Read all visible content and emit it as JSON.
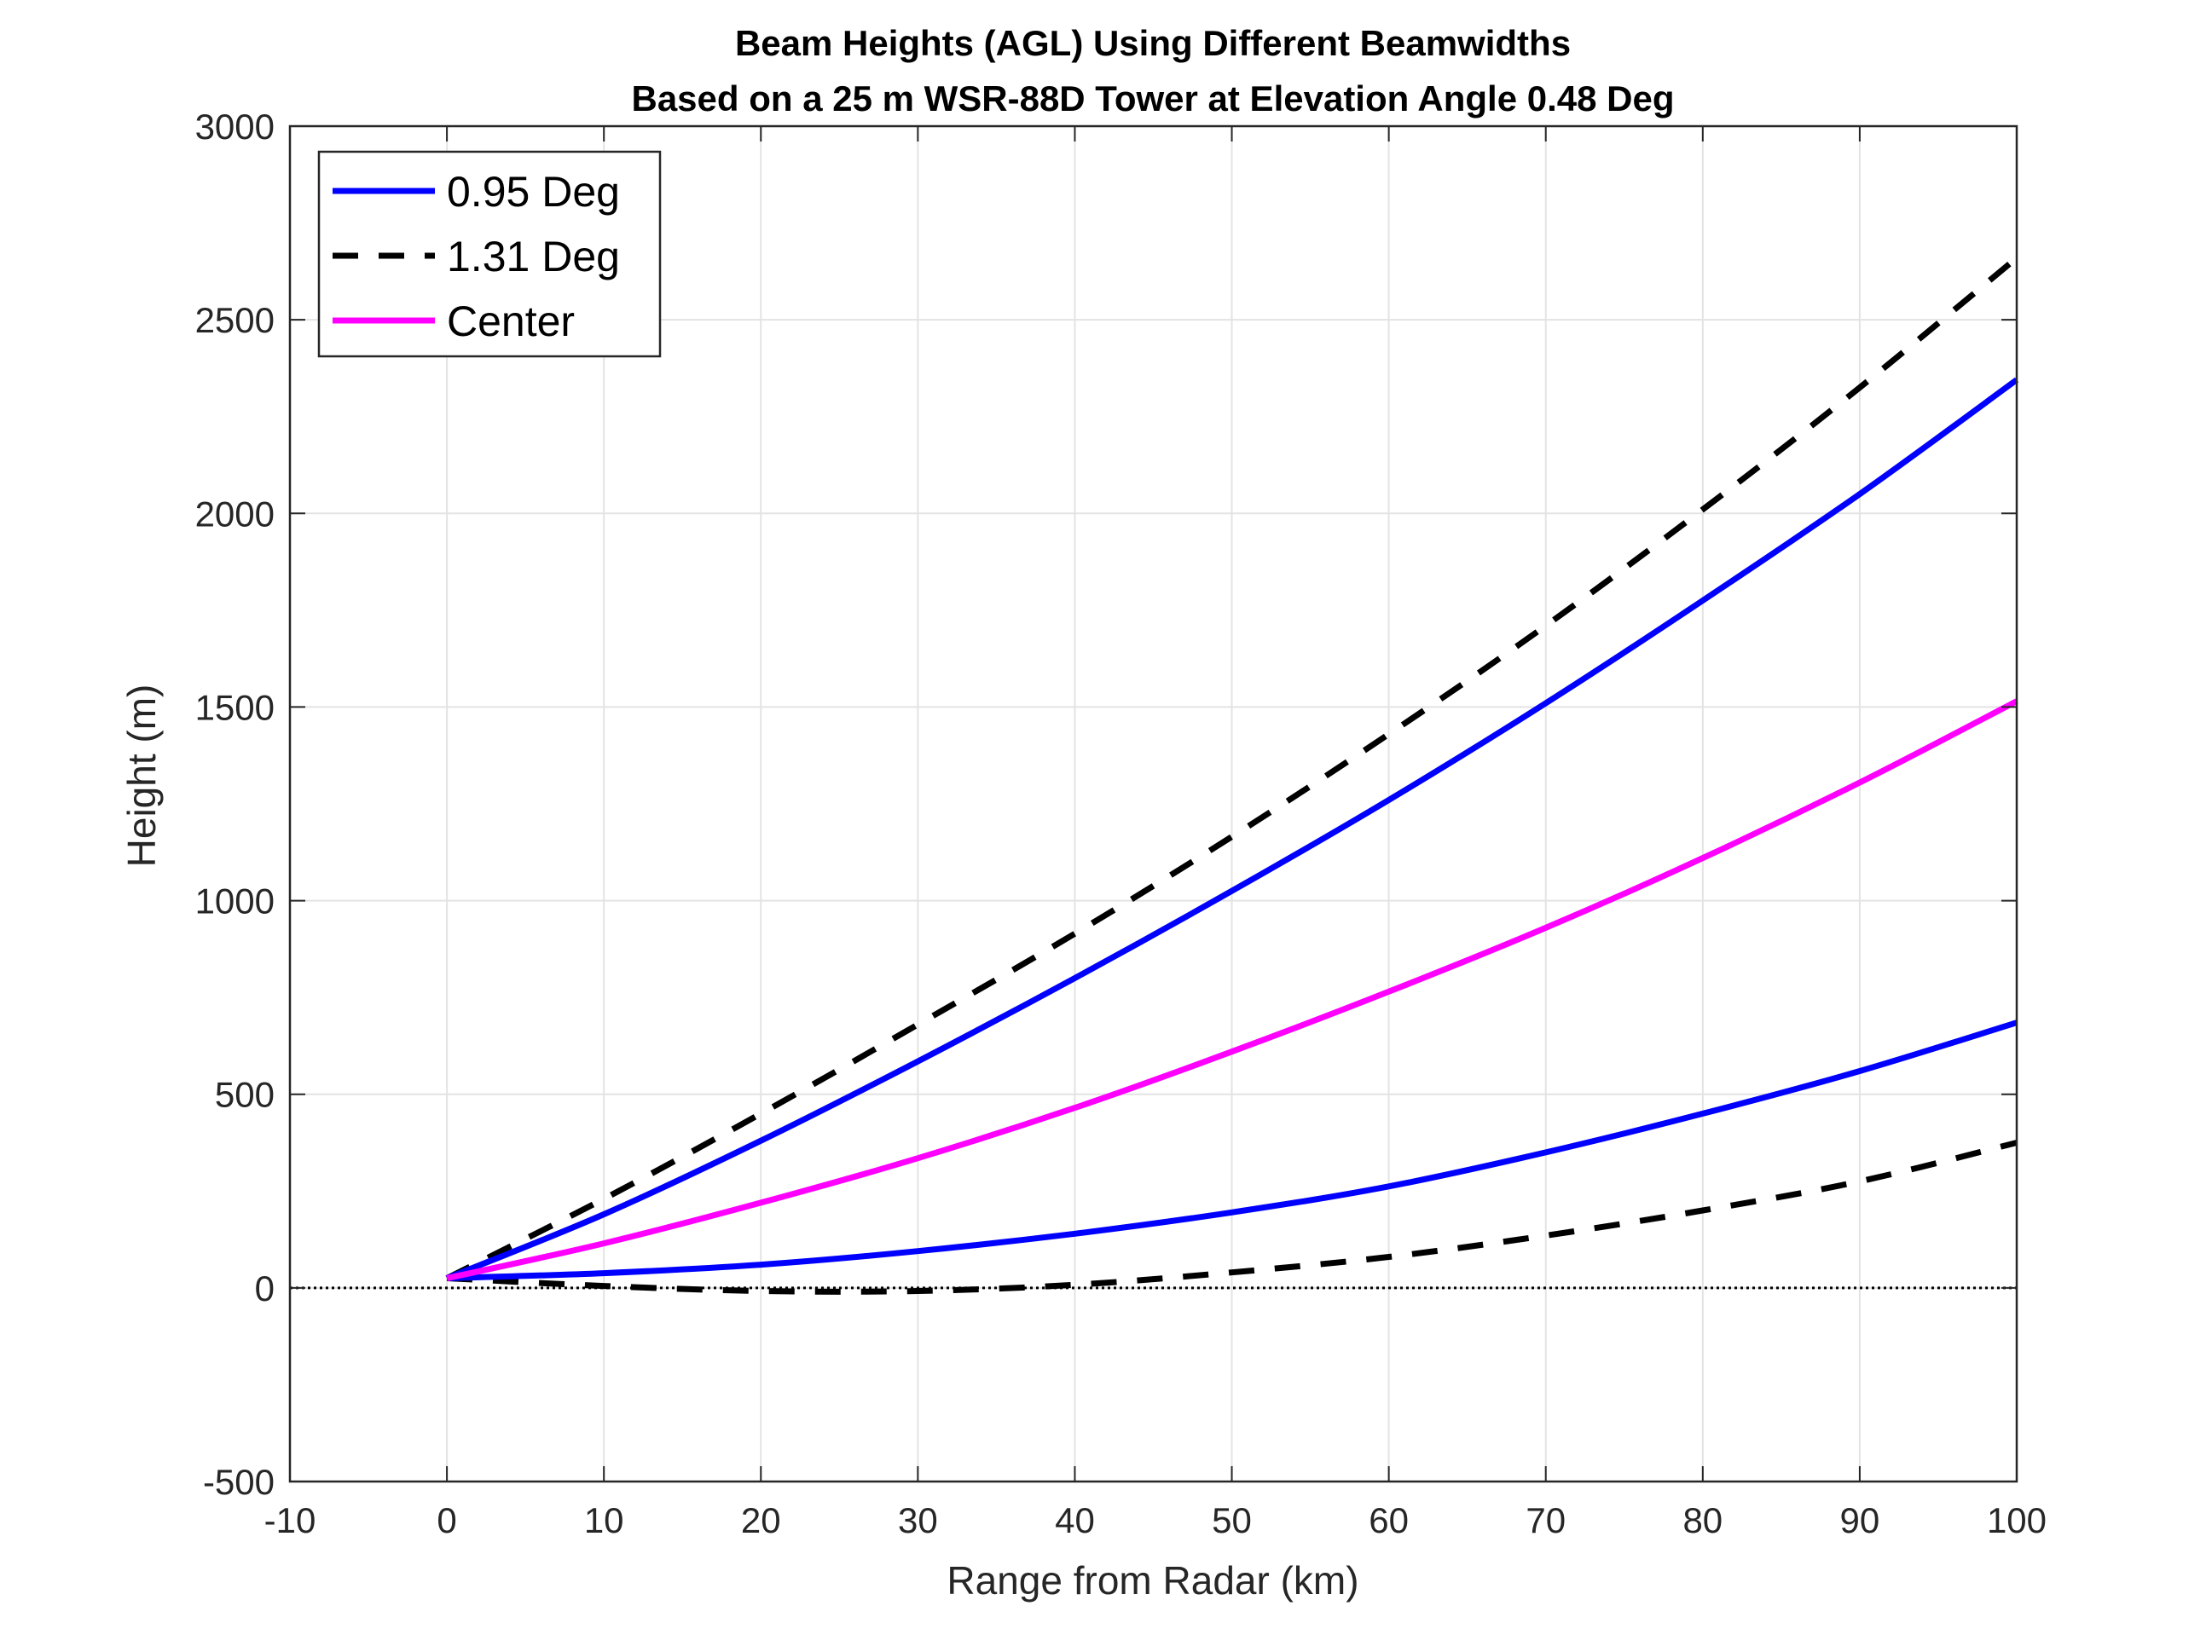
{
  "chart_data": {
    "type": "line",
    "title": "Beam Heights (AGL) Using Different Beamwidths",
    "subtitle": "Based on a 25 m WSR-88D Tower at Elevation Angle 0.48 Deg",
    "xlabel": "Range from Radar (km)",
    "ylabel": "Height (m)",
    "xlim": [
      -10,
      100
    ],
    "ylim": [
      -500,
      3000
    ],
    "xticks": [
      "-10",
      "0",
      "10",
      "20",
      "30",
      "40",
      "50",
      "60",
      "70",
      "80",
      "90",
      "100"
    ],
    "yticks": [
      "-500",
      "0",
      "500",
      "1000",
      "1500",
      "2000",
      "2500",
      "3000"
    ],
    "grid": true,
    "legend_position": "top-left",
    "x": [
      0,
      10,
      20,
      30,
      40,
      50,
      60,
      70,
      80,
      90,
      100
    ],
    "series": [
      {
        "name": "0.95 Deg",
        "role": "upper",
        "color": "#0000ff",
        "style": "solid",
        "values": [
          25,
          190,
          380,
          585,
          800,
          1025,
          1260,
          1510,
          1775,
          2050,
          2345
        ]
      },
      {
        "name": "0.95 Deg",
        "role": "lower",
        "color": "#0000ff",
        "style": "solid",
        "values": [
          25,
          38,
          60,
          95,
          140,
          195,
          262,
          350,
          450,
          560,
          685
        ]
      },
      {
        "name": "1.31 Deg",
        "role": "upper",
        "color": "#000000",
        "style": "dashed",
        "values": [
          25,
          230,
          450,
          680,
          915,
          1165,
          1430,
          1710,
          2010,
          2325,
          2660
        ]
      },
      {
        "name": "1.31 Deg",
        "role": "lower",
        "color": "#000000",
        "style": "dashed",
        "values": [
          25,
          5,
          -8,
          -8,
          8,
          40,
          80,
          135,
          200,
          275,
          375
        ]
      },
      {
        "name": "Center",
        "role": "center",
        "color": "#ff00ff",
        "style": "solid",
        "values": [
          25,
          115,
          220,
          335,
          465,
          610,
          765,
          930,
          1110,
          1305,
          1515
        ]
      }
    ],
    "legend": [
      {
        "label": "0.95 Deg",
        "color": "#0000ff",
        "style": "solid"
      },
      {
        "label": "1.31 Deg",
        "color": "#000000",
        "style": "dashed"
      },
      {
        "label": "Center",
        "color": "#ff00ff",
        "style": "solid"
      }
    ],
    "reference_line": {
      "y": 0,
      "style": "dotted",
      "color": "#000000"
    }
  }
}
